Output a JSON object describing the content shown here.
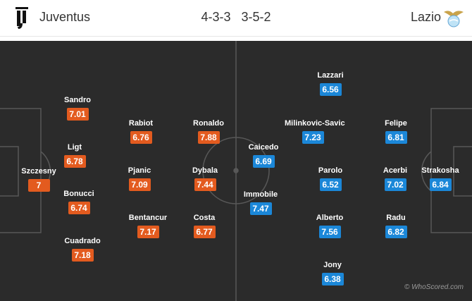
{
  "header": {
    "home_team": "Juventus",
    "away_team": "Lazio",
    "home_formation": "4-3-3",
    "away_formation": "3-5-2"
  },
  "colors": {
    "pitch": "#2b2b2b",
    "home_rating": "#e35b1f",
    "away_rating": "#1b87d8"
  },
  "home_players": [
    {
      "name": "Szczesny",
      "rating": "7"
    },
    {
      "name": "Sandro",
      "rating": "7.01"
    },
    {
      "name": "Ligt",
      "rating": "6.78"
    },
    {
      "name": "Bonucci",
      "rating": "6.74"
    },
    {
      "name": "Cuadrado",
      "rating": "7.18"
    },
    {
      "name": "Rabiot",
      "rating": "6.76"
    },
    {
      "name": "Pjanic",
      "rating": "7.09"
    },
    {
      "name": "Bentancur",
      "rating": "7.17"
    },
    {
      "name": "Ronaldo",
      "rating": "7.88"
    },
    {
      "name": "Dybala",
      "rating": "7.44"
    },
    {
      "name": "Costa",
      "rating": "6.77"
    }
  ],
  "away_players": [
    {
      "name": "Caicedo",
      "rating": "6.69"
    },
    {
      "name": "Immobile",
      "rating": "7.47"
    },
    {
      "name": "Lazzari",
      "rating": "6.56"
    },
    {
      "name": "Milinkovic-Savic",
      "rating": "7.23"
    },
    {
      "name": "Parolo",
      "rating": "6.52"
    },
    {
      "name": "Alberto",
      "rating": "7.56"
    },
    {
      "name": "Jony",
      "rating": "6.38"
    },
    {
      "name": "Felipe",
      "rating": "6.81"
    },
    {
      "name": "Acerbi",
      "rating": "7.02"
    },
    {
      "name": "Radu",
      "rating": "6.82"
    },
    {
      "name": "Strakosha",
      "rating": "6.84"
    }
  ],
  "watermark": "© WhoScored.com"
}
